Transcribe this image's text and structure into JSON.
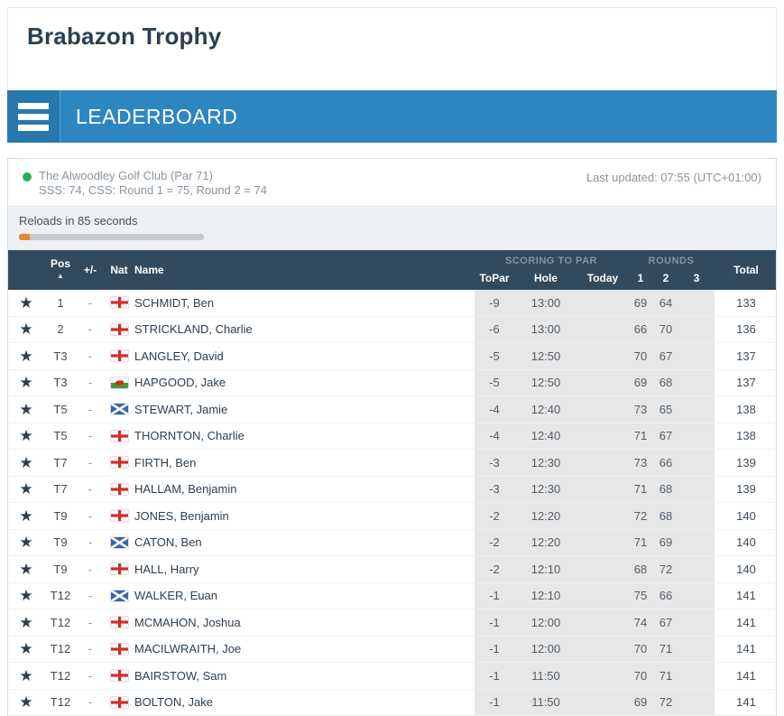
{
  "header": {
    "title": "Brabazon Trophy"
  },
  "nav": {
    "title": "LEADERBOARD"
  },
  "info": {
    "course_line1": "The Alwoodley Golf Club (Par 71)",
    "course_line2": "SSS: 74, CSS: Round 1 = 75, Round 2 = 74",
    "last_updated": "Last updated: 07:55 (UTC+01:00)"
  },
  "reload": {
    "text": "Reloads in 85 seconds",
    "progress_percent": 6
  },
  "icons": {
    "star": "★",
    "sort_asc": "▲"
  },
  "colors": {
    "brand_blue": "#2e86c1",
    "brand_blue_dark": "#2878ae",
    "header_navy": "#324a5e",
    "title_navy": "#2c3e50",
    "status_green": "#27ae60",
    "progress_orange": "#e8882b",
    "shaded_cell": "#e7e7e7"
  },
  "table": {
    "group_scoring": "SCORING TO PAR",
    "group_rounds": "ROUNDS",
    "headers": {
      "pos": "Pos",
      "plus_minus": "+/-",
      "nat": "Nat",
      "name": "Name",
      "topar": "ToPar",
      "hole": "Hole",
      "today": "Today",
      "r1": "1",
      "r2": "2",
      "r3": "3",
      "total": "Total"
    },
    "rows": [
      {
        "pos": "1",
        "change": "-",
        "flag": "england",
        "name": "SCHMIDT, Ben",
        "topar": "-9",
        "hole": "13:00",
        "today": "",
        "r1": "69",
        "r2": "64",
        "r3": "",
        "total": "133"
      },
      {
        "pos": "2",
        "change": "-",
        "flag": "england",
        "name": "STRICKLAND, Charlie",
        "topar": "-6",
        "hole": "13:00",
        "today": "",
        "r1": "66",
        "r2": "70",
        "r3": "",
        "total": "136"
      },
      {
        "pos": "T3",
        "change": "-",
        "flag": "england",
        "name": "LANGLEY, David",
        "topar": "-5",
        "hole": "12:50",
        "today": "",
        "r1": "70",
        "r2": "67",
        "r3": "",
        "total": "137"
      },
      {
        "pos": "T3",
        "change": "-",
        "flag": "wales",
        "name": "HAPGOOD, Jake",
        "topar": "-5",
        "hole": "12:50",
        "today": "",
        "r1": "69",
        "r2": "68",
        "r3": "",
        "total": "137"
      },
      {
        "pos": "T5",
        "change": "-",
        "flag": "scotland",
        "name": "STEWART, Jamie",
        "topar": "-4",
        "hole": "12:40",
        "today": "",
        "r1": "73",
        "r2": "65",
        "r3": "",
        "total": "138"
      },
      {
        "pos": "T5",
        "change": "-",
        "flag": "england",
        "name": "THORNTON, Charlie",
        "topar": "-4",
        "hole": "12:40",
        "today": "",
        "r1": "71",
        "r2": "67",
        "r3": "",
        "total": "138"
      },
      {
        "pos": "T7",
        "change": "-",
        "flag": "england",
        "name": "FIRTH, Ben",
        "topar": "-3",
        "hole": "12:30",
        "today": "",
        "r1": "73",
        "r2": "66",
        "r3": "",
        "total": "139"
      },
      {
        "pos": "T7",
        "change": "-",
        "flag": "england",
        "name": "HALLAM, Benjamin",
        "topar": "-3",
        "hole": "12:30",
        "today": "",
        "r1": "71",
        "r2": "68",
        "r3": "",
        "total": "139"
      },
      {
        "pos": "T9",
        "change": "-",
        "flag": "england",
        "name": "JONES, Benjamin",
        "topar": "-2",
        "hole": "12:20",
        "today": "",
        "r1": "72",
        "r2": "68",
        "r3": "",
        "total": "140"
      },
      {
        "pos": "T9",
        "change": "-",
        "flag": "scotland",
        "name": "CATON, Ben",
        "topar": "-2",
        "hole": "12:20",
        "today": "",
        "r1": "71",
        "r2": "69",
        "r3": "",
        "total": "140"
      },
      {
        "pos": "T9",
        "change": "-",
        "flag": "england",
        "name": "HALL, Harry",
        "topar": "-2",
        "hole": "12:10",
        "today": "",
        "r1": "68",
        "r2": "72",
        "r3": "",
        "total": "140"
      },
      {
        "pos": "T12",
        "change": "-",
        "flag": "scotland",
        "name": "WALKER, Euan",
        "topar": "-1",
        "hole": "12:10",
        "today": "",
        "r1": "75",
        "r2": "66",
        "r3": "",
        "total": "141"
      },
      {
        "pos": "T12",
        "change": "-",
        "flag": "england",
        "name": "MCMAHON, Joshua",
        "topar": "-1",
        "hole": "12:00",
        "today": "",
        "r1": "74",
        "r2": "67",
        "r3": "",
        "total": "141"
      },
      {
        "pos": "T12",
        "change": "-",
        "flag": "england",
        "name": "MACILWRAITH, Joe",
        "topar": "-1",
        "hole": "12:00",
        "today": "",
        "r1": "70",
        "r2": "71",
        "r3": "",
        "total": "141"
      },
      {
        "pos": "T12",
        "change": "-",
        "flag": "england",
        "name": "BAIRSTOW, Sam",
        "topar": "-1",
        "hole": "11:50",
        "today": "",
        "r1": "70",
        "r2": "71",
        "r3": "",
        "total": "141"
      },
      {
        "pos": "T12",
        "change": "-",
        "flag": "england",
        "name": "BOLTON, Jake",
        "topar": "-1",
        "hole": "11:50",
        "today": "",
        "r1": "69",
        "r2": "72",
        "r3": "",
        "total": "141"
      }
    ]
  }
}
